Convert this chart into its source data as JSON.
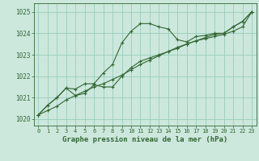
{
  "background_color": "#cce8dd",
  "grid_color": "#99ccbb",
  "line_color": "#336633",
  "marker_color": "#336633",
  "title": "Graphe pression niveau de la mer (hPa)",
  "xlim": [
    -0.5,
    23.5
  ],
  "ylim": [
    1019.7,
    1025.4
  ],
  "yticks": [
    1020,
    1021,
    1022,
    1023,
    1024,
    1025
  ],
  "xticks": [
    0,
    1,
    2,
    3,
    4,
    5,
    6,
    7,
    8,
    9,
    10,
    11,
    12,
    13,
    14,
    15,
    16,
    17,
    18,
    19,
    20,
    21,
    22,
    23
  ],
  "series": [
    {
      "x": [
        0,
        1,
        2,
        3,
        4,
        5,
        6,
        7,
        8,
        9,
        10,
        11,
        12,
        13,
        14,
        15,
        16,
        17,
        18,
        19,
        20,
        21,
        22,
        23
      ],
      "y": [
        1020.2,
        1020.65,
        1021.0,
        1021.45,
        1021.4,
        1021.65,
        1021.65,
        1022.15,
        1022.55,
        1023.55,
        1024.1,
        1024.45,
        1024.45,
        1024.3,
        1024.2,
        1023.7,
        1023.6,
        1023.85,
        1023.9,
        1024.0,
        1024.0,
        1024.3,
        1024.55,
        1025.0
      ]
    },
    {
      "x": [
        0,
        1,
        2,
        3,
        4,
        5,
        6,
        7,
        8,
        9,
        10,
        11,
        12,
        13,
        14,
        15,
        16,
        17,
        18,
        19,
        20,
        21,
        22,
        23
      ],
      "y": [
        1020.2,
        1020.65,
        1021.0,
        1021.45,
        1021.1,
        1021.2,
        1021.6,
        1021.5,
        1021.5,
        1022.0,
        1022.4,
        1022.7,
        1022.85,
        1023.0,
        1023.15,
        1023.3,
        1023.5,
        1023.65,
        1023.8,
        1023.95,
        1024.0,
        1024.3,
        1024.55,
        1025.0
      ]
    },
    {
      "x": [
        0,
        1,
        2,
        3,
        4,
        5,
        6,
        7,
        8,
        9,
        10,
        11,
        12,
        13,
        14,
        15,
        16,
        17,
        18,
        19,
        20,
        21,
        22,
        23
      ],
      "y": [
        1020.2,
        1020.4,
        1020.6,
        1020.9,
        1021.1,
        1021.3,
        1021.5,
        1021.65,
        1021.85,
        1022.05,
        1022.3,
        1022.55,
        1022.75,
        1022.95,
        1023.15,
        1023.35,
        1023.5,
        1023.65,
        1023.75,
        1023.85,
        1023.95,
        1024.1,
        1024.3,
        1025.0
      ]
    }
  ]
}
